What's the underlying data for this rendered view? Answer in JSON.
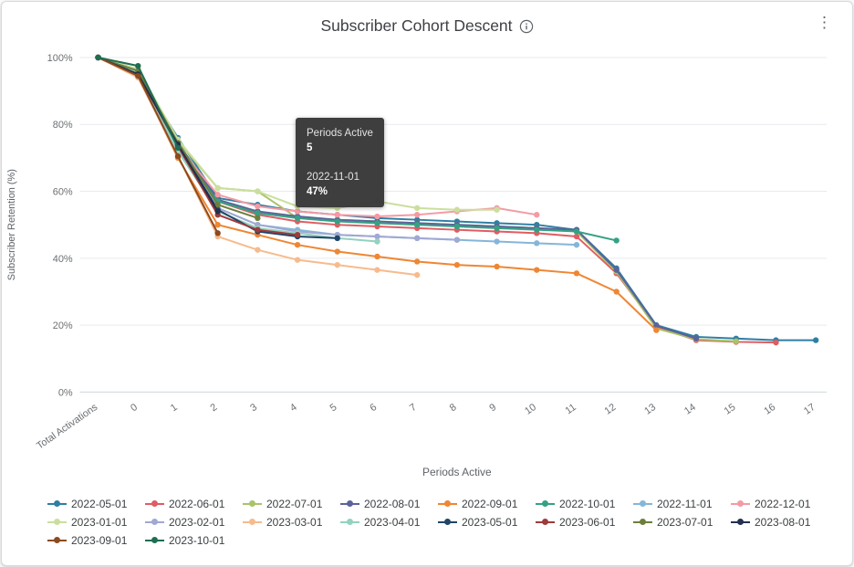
{
  "tooltip": {
    "header_label": "Periods Active",
    "header_value": "5",
    "series_label": "2022-11-01",
    "series_value": "47%"
  },
  "icons": {
    "info": "info-circle",
    "menu": "kebab-vertical"
  },
  "chart_data": {
    "type": "line",
    "title": "Subscriber Cohort Descent",
    "xlabel": "Periods Active",
    "ylabel": "Subscriber Retention (%)",
    "ylim": [
      0,
      100
    ],
    "y_ticks": [
      "0%",
      "20%",
      "40%",
      "60%",
      "80%",
      "100%"
    ],
    "grid": "horizontal",
    "legend_position": "bottom",
    "categories": [
      "Total Activations",
      "0",
      "1",
      "2",
      "3",
      "4",
      "5",
      "6",
      "7",
      "8",
      "9",
      "10",
      "11",
      "12",
      "13",
      "14",
      "15",
      "16",
      "17"
    ],
    "series": [
      {
        "name": "2022-05-01",
        "color": "#2e7fa3",
        "values": [
          100,
          95,
          76,
          58,
          56,
          54,
          53,
          52,
          51.5,
          51,
          50.5,
          50,
          48.5,
          37,
          20,
          16.5,
          16,
          15.5,
          15.5
        ]
      },
      {
        "name": "2022-06-01",
        "color": "#e05c63",
        "values": [
          100,
          95.5,
          74,
          57,
          53,
          51,
          50,
          49.5,
          49,
          48.5,
          48,
          47.5,
          46.5,
          35.5,
          19.5,
          15.5,
          15,
          14.8
        ]
      },
      {
        "name": "2022-07-01",
        "color": "#a9c368",
        "values": [
          100,
          96,
          75,
          61,
          60,
          52,
          51.5,
          51,
          50.5,
          50,
          49.5,
          49,
          48,
          36,
          19,
          15.8,
          15.2
        ]
      },
      {
        "name": "2022-08-01",
        "color": "#5b6399",
        "values": [
          100,
          95,
          74.5,
          57.5,
          54,
          52.5,
          51.5,
          51,
          50.5,
          50,
          49.5,
          49,
          48.5,
          36.5,
          19.8,
          16
        ]
      },
      {
        "name": "2022-09-01",
        "color": "#ef8633",
        "values": [
          100,
          94.5,
          70,
          50,
          47,
          44,
          42,
          40.5,
          39,
          38,
          37.5,
          36.5,
          35.5,
          30,
          18.5
        ]
      },
      {
        "name": "2022-10-01",
        "color": "#35a183",
        "values": [
          100,
          96.5,
          73,
          57,
          53.5,
          52,
          51,
          50.5,
          50,
          49.5,
          49,
          48.5,
          48,
          45.3
        ]
      },
      {
        "name": "2022-11-01",
        "color": "#85b6d8",
        "values": [
          100,
          95,
          72,
          55,
          50,
          48.5,
          47,
          46.5,
          46,
          45.5,
          45,
          44.5,
          44
        ]
      },
      {
        "name": "2022-12-01",
        "color": "#f49aa4",
        "values": [
          100,
          95.5,
          73.5,
          59,
          55.5,
          54,
          53,
          52.5,
          53,
          54,
          55,
          53
        ]
      },
      {
        "name": "2023-01-01",
        "color": "#cadf9d",
        "values": [
          100,
          96.5,
          75.5,
          61,
          60,
          55.5,
          55,
          57,
          55,
          54.5,
          54.5
        ]
      },
      {
        "name": "2023-02-01",
        "color": "#a0a8d3",
        "values": [
          100,
          95,
          73,
          55,
          50,
          48,
          47,
          46.5,
          46,
          45.5
        ]
      },
      {
        "name": "2023-03-01",
        "color": "#f6bb8d",
        "values": [
          100,
          94,
          70.5,
          46.5,
          42.5,
          39.5,
          38,
          36.5,
          35
        ]
      },
      {
        "name": "2023-04-01",
        "color": "#93d2c0",
        "values": [
          100,
          95.5,
          72,
          54,
          49,
          47.5,
          46,
          45
        ]
      },
      {
        "name": "2023-05-01",
        "color": "#1f4668",
        "values": [
          100,
          95,
          74,
          54.5,
          48,
          46.5,
          46
        ]
      },
      {
        "name": "2023-06-01",
        "color": "#9e3b3b",
        "values": [
          100,
          95,
          73.5,
          53,
          48.5,
          47
        ]
      },
      {
        "name": "2023-07-01",
        "color": "#6d7f3c",
        "values": [
          100,
          96,
          74.5,
          56,
          52
        ]
      },
      {
        "name": "2023-08-01",
        "color": "#23304f",
        "values": [
          100,
          95,
          74,
          54
        ]
      },
      {
        "name": "2023-09-01",
        "color": "#8c4a1f",
        "values": [
          100,
          94.5,
          70.5,
          47.5
        ]
      },
      {
        "name": "2023-10-01",
        "color": "#1f6e52",
        "values": [
          100,
          97.5,
          73
        ]
      }
    ]
  }
}
